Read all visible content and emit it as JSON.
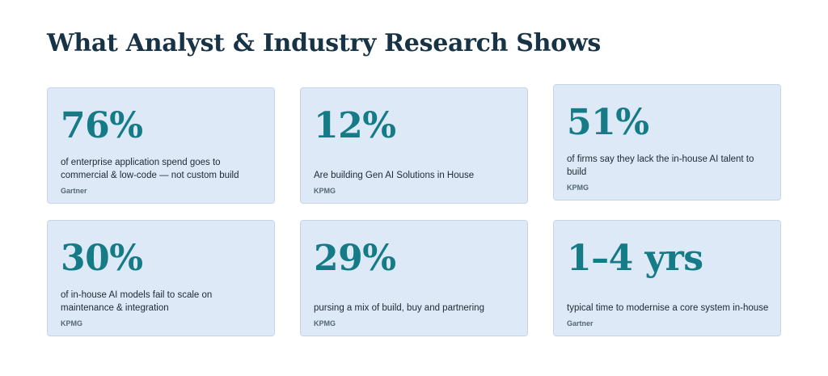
{
  "title": "What Analyst & Industry Research Shows",
  "accent_color": "#147b87",
  "card_background": "#dde9f6",
  "stats": [
    {
      "value": "76%",
      "description": "of enterprise application spend goes to commercial & low-code — not custom build",
      "source": "Gartner"
    },
    {
      "value": "12%",
      "description": "Are building Gen AI Solutions in House",
      "source": "KPMG"
    },
    {
      "value": "51%",
      "description": "of firms say they lack the in-house AI talent to build",
      "source": "KPMG"
    },
    {
      "value": "30%",
      "description": "of in-house AI models fail to scale on maintenance & integration",
      "source": "KPMG"
    },
    {
      "value": "29%",
      "description": "pursing a mix of build, buy and partnering",
      "source": "KPMG"
    },
    {
      "value": "1–4 yrs",
      "description": "typical time to modernise a core system in-house",
      "source": "Gartner"
    }
  ]
}
